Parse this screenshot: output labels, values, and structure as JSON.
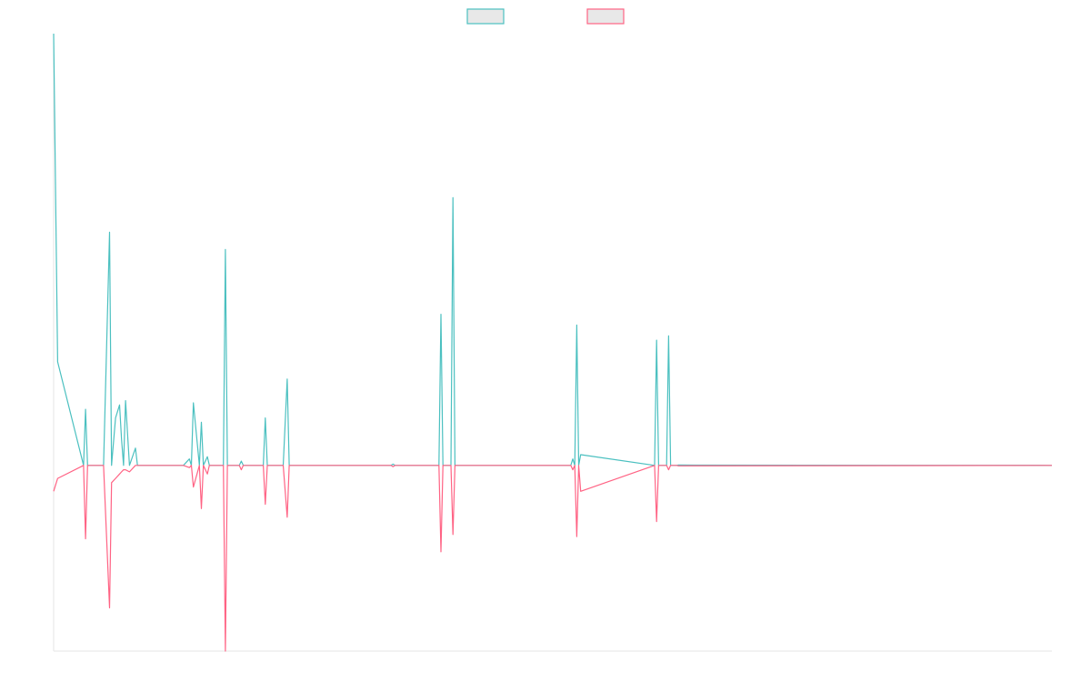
{
  "chart_data": {
    "type": "line",
    "title": "",
    "xlabel": "",
    "ylabel": "",
    "grid": false,
    "legend_position": "top-center",
    "xlim": [
      0,
      1
    ],
    "ylim": [
      -0.43,
      1.0
    ],
    "x": [
      0.0,
      0.004,
      0.03,
      0.032,
      0.034,
      0.05,
      0.056,
      0.058,
      0.062,
      0.066,
      0.068,
      0.07,
      0.072,
      0.076,
      0.082,
      0.084,
      0.086,
      0.088,
      0.094,
      0.13,
      0.136,
      0.138,
      0.14,
      0.146,
      0.148,
      0.15,
      0.154,
      0.156,
      0.158,
      0.17,
      0.172,
      0.174,
      0.18,
      0.186,
      0.188,
      0.19,
      0.21,
      0.212,
      0.214,
      0.23,
      0.234,
      0.236,
      0.338,
      0.34,
      0.342,
      0.386,
      0.388,
      0.39,
      0.398,
      0.4,
      0.402,
      0.518,
      0.52,
      0.522,
      0.524,
      0.526,
      0.528,
      0.602,
      0.604,
      0.606,
      0.614,
      0.616,
      0.618,
      0.624,
      0.626,
      1.0
    ],
    "series": [
      {
        "values": [
          1.0,
          0.24,
          0.0,
          0.13,
          0.0,
          0.0,
          0.54,
          0.0,
          0.11,
          0.14,
          0.06,
          0.0,
          0.15,
          0.0,
          0.04,
          0.0,
          0.0,
          0.0,
          0.0,
          0.0,
          0.015,
          0.0,
          0.145,
          0.0,
          0.1,
          0.0,
          0.02,
          0.0,
          0.0,
          0.0,
          0.5,
          0.0,
          0.0,
          0.0,
          0.01,
          0.0,
          0.0,
          0.11,
          0.0,
          0.0,
          0.2,
          0.0,
          0.0,
          0.003,
          0.0,
          0.0,
          0.35,
          0.0,
          0.0,
          0.62,
          0.0,
          0.0,
          0.015,
          0.0,
          0.325,
          0.0,
          0.025,
          0.0,
          0.29,
          0.0,
          0.0,
          0.3,
          0.0,
          0.0,
          0.001,
          0.0
        ]
      },
      {
        "values": [
          -0.06,
          -0.03,
          0.0,
          -0.17,
          0.0,
          0.0,
          -0.33,
          -0.04,
          -0.03,
          -0.02,
          -0.015,
          -0.01,
          -0.01,
          -0.015,
          0.0,
          0.0,
          0.0,
          0.0,
          0.0,
          0.0,
          -0.005,
          0.0,
          -0.05,
          0.0,
          -0.1,
          0.0,
          -0.02,
          0.0,
          0.0,
          0.0,
          -0.43,
          0.0,
          0.0,
          0.0,
          -0.01,
          0.0,
          0.0,
          -0.09,
          0.0,
          0.0,
          -0.12,
          0.0,
          0.0,
          -0.003,
          0.0,
          0.0,
          -0.2,
          0.0,
          0.0,
          -0.16,
          0.0,
          0.0,
          -0.01,
          0.0,
          -0.165,
          0.0,
          -0.06,
          0.0,
          -0.13,
          0.0,
          0.0,
          -0.01,
          0.0,
          0.0,
          -0.001,
          0.0
        ]
      }
    ],
    "colors": [
      "#4bc0c0",
      "#ff6384"
    ],
    "legend_fill": "#e8e8e8",
    "axis_color": "#e5e5e5"
  }
}
